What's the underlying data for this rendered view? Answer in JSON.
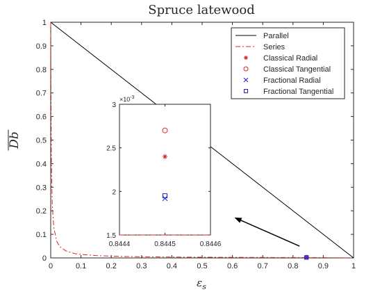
{
  "chart_data": [
    {
      "type": "line",
      "title": "Spruce latewood",
      "xlabel": "ε_s",
      "ylabel": "Db",
      "xlim": [
        0,
        1
      ],
      "ylim": [
        0,
        1
      ],
      "xticks": [
        0,
        0.1,
        0.2,
        0.3,
        0.4,
        0.5,
        0.6,
        0.7,
        0.8,
        0.9,
        1
      ],
      "yticks": [
        0,
        0.1,
        0.2,
        0.3,
        0.4,
        0.5,
        0.6,
        0.7,
        0.8,
        0.9,
        1
      ],
      "xtick_labels": [
        "0",
        "0.1",
        "0.2",
        "0.3",
        "0.4",
        "0.5",
        "0.6",
        "0.7",
        "0.8",
        "0.9",
        "1"
      ],
      "ytick_labels": [
        "0",
        "0.1",
        "0.2",
        "0.3",
        "0.4",
        "0.5",
        "0.6",
        "0.7",
        "0.8",
        "0.9",
        "1"
      ],
      "grid": false,
      "legend_position": "top-right",
      "series": [
        {
          "name": "Parallel",
          "style": "solid",
          "color": "#000000",
          "x": [
            0,
            1
          ],
          "y": [
            1,
            0
          ]
        },
        {
          "name": "Series",
          "style": "dash-dot",
          "color": "#d62728",
          "x": [
            0,
            0.002,
            0.005,
            0.01,
            0.02,
            0.03,
            0.05,
            0.08,
            0.1,
            0.15,
            0.2,
            0.3,
            0.4,
            0.5,
            0.6,
            0.7,
            0.8,
            0.8445,
            0.9,
            1
          ],
          "y": [
            1,
            0.43,
            0.23,
            0.13,
            0.07,
            0.048,
            0.03,
            0.018,
            0.015,
            0.01,
            0.0075,
            0.005,
            0.0037,
            0.003,
            0.0025,
            0.0021,
            0.0018,
            0.0015,
            0.0013,
            0
          ]
        },
        {
          "name": "Classical Radial",
          "marker": "asterisk",
          "color": "#d62728",
          "x": [
            0.8445
          ],
          "y": [
            0.0024
          ]
        },
        {
          "name": "Classical Tangential",
          "marker": "circle",
          "color": "#d62728",
          "x": [
            0.8445
          ],
          "y": [
            0.0027
          ]
        },
        {
          "name": "Fractional Radial",
          "marker": "x",
          "color": "#1f1fd6",
          "x": [
            0.8445
          ],
          "y": [
            0.00192
          ]
        },
        {
          "name": "Fractional Tangential",
          "marker": "square",
          "color": "#1f1fd6",
          "x": [
            0.8445
          ],
          "y": [
            0.00195
          ]
        }
      ],
      "annotations": [
        {
          "type": "arrow",
          "from": [
            0.84,
            0.05
          ],
          "to": [
            0.6,
            0.17
          ]
        }
      ]
    },
    {
      "type": "scatter",
      "role": "inset",
      "xlim": [
        0.8444,
        0.8446
      ],
      "ylim": [
        0.0015,
        0.003
      ],
      "xticks": [
        0.8444,
        0.8445,
        0.8446
      ],
      "yticks": [
        1.5,
        2,
        2.5,
        3
      ],
      "xtick_labels": [
        "0.8444",
        "0.8445",
        "0.8446"
      ],
      "ytick_labels": [
        "1.5",
        "2",
        "2.5",
        "3"
      ],
      "y_exponent_label": "×10",
      "y_exponent_power": "-3",
      "series": [
        {
          "name": "Series",
          "style": "dash-dot",
          "color": "#d62728",
          "x": [
            0.8444,
            0.8446
          ],
          "y": [
            0.0015,
            0.0015
          ]
        },
        {
          "name": "Classical Radial",
          "marker": "asterisk",
          "color": "#d62728",
          "x": [
            0.8445
          ],
          "y": [
            0.0024
          ]
        },
        {
          "name": "Classical Tangential",
          "marker": "circle",
          "color": "#d62728",
          "x": [
            0.8445
          ],
          "y": [
            0.0027
          ]
        },
        {
          "name": "Fractional Radial",
          "marker": "x",
          "color": "#1f1fd6",
          "x": [
            0.8445
          ],
          "y": [
            0.00192
          ]
        },
        {
          "name": "Fractional Tangential",
          "marker": "square",
          "color": "#1f1fd6",
          "x": [
            0.8445
          ],
          "y": [
            0.00195
          ]
        }
      ]
    }
  ]
}
